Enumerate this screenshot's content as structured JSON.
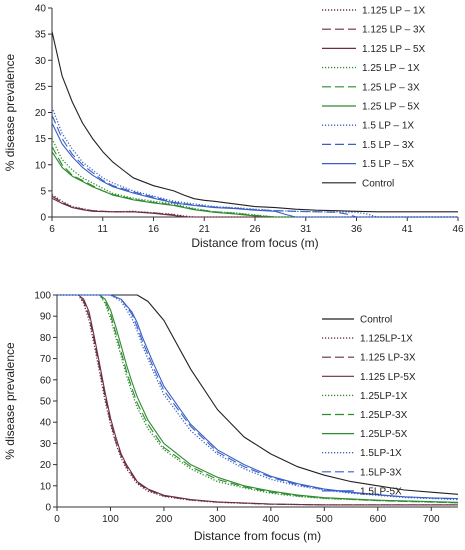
{
  "chart_data": [
    {
      "type": "line",
      "xlabel": "Distance from focus (m)",
      "ylabel": "% disease prevalence",
      "xlim": [
        6,
        46
      ],
      "ylim": [
        0,
        40
      ],
      "xticks": [
        6,
        11,
        16,
        21,
        26,
        31,
        36,
        41,
        46
      ],
      "yticks": [
        0,
        5,
        10,
        15,
        20,
        25,
        30,
        35,
        40
      ],
      "grid": false,
      "legend_position": "right",
      "series": [
        {
          "name": "1.125 LP – 1X",
          "color": "#6b2f3f",
          "dash": "dotted",
          "x": [
            6,
            7,
            8,
            9,
            10,
            12,
            14,
            16,
            18,
            19,
            20,
            46
          ],
          "y": [
            4.3,
            3.0,
            2.0,
            1.6,
            1.2,
            1.0,
            1.1,
            0.8,
            0.5,
            0.2,
            0,
            0
          ]
        },
        {
          "name": "1.125 LP – 3X",
          "color": "#6b2f3f",
          "dash": "longdash",
          "x": [
            6,
            7,
            8,
            9,
            10,
            12,
            14,
            16,
            18,
            19,
            20,
            46
          ],
          "y": [
            4.0,
            2.8,
            1.9,
            1.5,
            1.2,
            1.0,
            1.0,
            0.8,
            0.4,
            0.1,
            0,
            0
          ]
        },
        {
          "name": "1.125 LP – 5X",
          "color": "#6b2f3f",
          "dash": "solid",
          "x": [
            6,
            7,
            8,
            9,
            10,
            12,
            14,
            16,
            18,
            19,
            20,
            46
          ],
          "y": [
            3.6,
            2.6,
            1.8,
            1.4,
            1.1,
            1.0,
            1.0,
            0.7,
            0.3,
            0,
            0,
            0
          ]
        },
        {
          "name": "1.25 LP – 1X",
          "color": "#2e8b2e",
          "dash": "dotted",
          "x": [
            6,
            7,
            8,
            9,
            10,
            11,
            12,
            14,
            16,
            18,
            20,
            22,
            24,
            26,
            28,
            46
          ],
          "y": [
            15,
            11,
            9,
            7.5,
            6.5,
            5.5,
            4.5,
            3.6,
            3.0,
            2.5,
            1.6,
            1.0,
            0.8,
            0.4,
            0,
            0
          ]
        },
        {
          "name": "1.25 LP – 3X",
          "color": "#2e8b2e",
          "dash": "longdash",
          "x": [
            6,
            7,
            8,
            9,
            10,
            11,
            12,
            14,
            16,
            18,
            20,
            22,
            24,
            26,
            28,
            46
          ],
          "y": [
            13.5,
            10,
            8,
            7,
            6,
            5,
            4.3,
            3.4,
            2.8,
            2.3,
            1.5,
            1.0,
            0.7,
            0.3,
            0,
            0
          ]
        },
        {
          "name": "1.25 LP – 5X",
          "color": "#2e8b2e",
          "dash": "solid",
          "x": [
            6,
            7,
            8,
            9,
            10,
            11,
            12,
            14,
            16,
            18,
            20,
            22,
            24,
            26,
            28,
            46
          ],
          "y": [
            12.5,
            9.5,
            7.8,
            6.8,
            5.8,
            5,
            4.2,
            3.3,
            2.7,
            2.2,
            1.4,
            0.9,
            0.6,
            0.2,
            0,
            0
          ]
        },
        {
          "name": "1.5 LP – 1X",
          "color": "#3a60c8",
          "dash": "dotted",
          "x": [
            6,
            7,
            8,
            9,
            10,
            11,
            12,
            14,
            16,
            18,
            20,
            22,
            24,
            26,
            28,
            30,
            32,
            34,
            36,
            37,
            38,
            46
          ],
          "y": [
            21,
            16,
            13,
            10.5,
            9,
            7.5,
            6.5,
            5.0,
            4.0,
            3.0,
            2.5,
            2.0,
            1.8,
            1.5,
            1.2,
            1.1,
            1.0,
            1.0,
            0.9,
            0.6,
            0,
            0
          ]
        },
        {
          "name": "1.5 LP – 3X",
          "color": "#3a60c8",
          "dash": "longdash",
          "x": [
            6,
            7,
            8,
            9,
            10,
            11,
            12,
            14,
            16,
            18,
            20,
            22,
            24,
            26,
            28,
            30,
            32,
            34,
            35,
            36,
            46
          ],
          "y": [
            19.5,
            15,
            12,
            10,
            8.5,
            7,
            6,
            4.8,
            3.8,
            2.8,
            2.3,
            1.9,
            1.7,
            1.4,
            1.2,
            1.1,
            1.0,
            0.9,
            0.6,
            0,
            0
          ]
        },
        {
          "name": "1.5 LP – 5X",
          "color": "#3a60c8",
          "dash": "solid",
          "x": [
            6,
            7,
            8,
            9,
            10,
            11,
            12,
            14,
            16,
            18,
            20,
            22,
            24,
            26,
            28,
            29,
            30,
            46
          ],
          "y": [
            18,
            14,
            11.5,
            9.5,
            8,
            6.8,
            5.8,
            4.6,
            3.6,
            2.7,
            2.2,
            1.8,
            1.6,
            1.3,
            1.1,
            0.5,
            0,
            0
          ]
        },
        {
          "name": "Control",
          "color": "#222222",
          "dash": "solid",
          "x": [
            6,
            7,
            8,
            9,
            10,
            11,
            12,
            13,
            14,
            16,
            18,
            19,
            20,
            21,
            22,
            24,
            26,
            28,
            30,
            32,
            34,
            36,
            38,
            40,
            46
          ],
          "y": [
            35.5,
            27,
            22,
            18,
            15,
            12.5,
            10.5,
            9,
            7.5,
            6.0,
            5.0,
            4.2,
            3.5,
            3.2,
            3.0,
            2.5,
            2.0,
            1.8,
            1.5,
            1.3,
            1.2,
            1.1,
            1.0,
            1.0,
            1.0
          ]
        }
      ]
    },
    {
      "type": "line",
      "xlabel": "Distance from focus (m)",
      "ylabel": "% disease prevalence",
      "xlim": [
        0,
        750
      ],
      "ylim": [
        0,
        100
      ],
      "xticks": [
        0,
        100,
        200,
        300,
        400,
        500,
        600,
        700
      ],
      "yticks": [
        0,
        10,
        20,
        30,
        40,
        50,
        60,
        70,
        80,
        90,
        100
      ],
      "grid": false,
      "legend_position": "right",
      "series": [
        {
          "name": "Control",
          "color": "#222222",
          "dash": "solid",
          "x": [
            0,
            100,
            150,
            170,
            200,
            250,
            300,
            350,
            400,
            450,
            500,
            550,
            600,
            650,
            700,
            750
          ],
          "y": [
            100,
            100,
            100,
            97,
            88,
            65,
            46,
            33,
            25,
            19,
            15,
            12,
            10,
            8,
            7,
            6
          ]
        },
        {
          "name": "1.125LP-1X",
          "color": "#6b2f3f",
          "dash": "dotted",
          "x": [
            0,
            40,
            50,
            60,
            70,
            80,
            90,
            100,
            110,
            120,
            130,
            150,
            170,
            200,
            250,
            300,
            400,
            500,
            750
          ],
          "y": [
            100,
            100,
            96,
            88,
            76,
            63,
            50,
            39,
            30,
            23,
            18,
            11,
            7.5,
            5,
            3.2,
            2.2,
            1.3,
            1,
            1
          ]
        },
        {
          "name": "1.125 LP-3X",
          "color": "#6b2f3f",
          "dash": "longdash",
          "x": [
            0,
            40,
            50,
            60,
            70,
            80,
            90,
            100,
            110,
            120,
            130,
            150,
            170,
            200,
            250,
            300,
            400,
            500,
            750
          ],
          "y": [
            100,
            100,
            97,
            90,
            78,
            65,
            52,
            40,
            31,
            24,
            19,
            11.5,
            8,
            5.2,
            3.3,
            2.3,
            1.3,
            1,
            1
          ]
        },
        {
          "name": "1.125 LP-5X",
          "color": "#6b2f3f",
          "dash": "solid",
          "x": [
            0,
            40,
            50,
            60,
            70,
            80,
            90,
            100,
            110,
            120,
            130,
            150,
            170,
            200,
            250,
            300,
            400,
            500,
            750
          ],
          "y": [
            100,
            100,
            98,
            92,
            80,
            67,
            54,
            42,
            33,
            25,
            20,
            12,
            8.5,
            5.5,
            3.5,
            2.4,
            1.4,
            1,
            1
          ]
        },
        {
          "name": "1.25LP-1X",
          "color": "#2e8b2e",
          "dash": "dotted",
          "x": [
            0,
            80,
            90,
            100,
            110,
            120,
            130,
            140,
            150,
            170,
            200,
            250,
            300,
            350,
            400,
            450,
            500,
            600,
            750
          ],
          "y": [
            100,
            100,
            96,
            89,
            80,
            71,
            62,
            54,
            47,
            37,
            27,
            18,
            12,
            9,
            6.5,
            5,
            4,
            3,
            2
          ]
        },
        {
          "name": "1.25LP-3X",
          "color": "#2e8b2e",
          "dash": "longdash",
          "x": [
            0,
            80,
            90,
            100,
            110,
            120,
            130,
            140,
            150,
            170,
            200,
            250,
            300,
            350,
            400,
            450,
            500,
            600,
            750
          ],
          "y": [
            100,
            100,
            97,
            91,
            82,
            73,
            64,
            56,
            49,
            39,
            28,
            19,
            13,
            9.5,
            7,
            5.3,
            4.2,
            3,
            2
          ]
        },
        {
          "name": "1.25LP-5X",
          "color": "#2e8b2e",
          "dash": "solid",
          "x": [
            0,
            80,
            90,
            100,
            110,
            120,
            130,
            140,
            150,
            170,
            200,
            250,
            300,
            350,
            400,
            450,
            500,
            600,
            750
          ],
          "y": [
            100,
            100,
            98,
            93,
            85,
            76,
            67,
            59,
            52,
            41,
            30,
            20,
            14,
            10,
            7.5,
            5.6,
            4.4,
            3.2,
            2.2
          ]
        },
        {
          "name": "1.5LP-1X",
          "color": "#3a60c8",
          "dash": "dotted",
          "x": [
            0,
            100,
            120,
            140,
            150,
            160,
            180,
            200,
            250,
            300,
            350,
            400,
            450,
            500,
            550,
            600,
            650,
            700,
            750
          ],
          "y": [
            100,
            100,
            97,
            89,
            83,
            76,
            64,
            53,
            36,
            25,
            18,
            13,
            10,
            8,
            6.5,
            5.5,
            4.5,
            4,
            3.5
          ]
        },
        {
          "name": "1.5LP-3X",
          "color": "#3a60c8",
          "dash": "longdash",
          "x": [
            0,
            100,
            120,
            140,
            150,
            160,
            180,
            200,
            250,
            300,
            350,
            400,
            450,
            500,
            550,
            600,
            650,
            700,
            750
          ],
          "y": [
            100,
            100,
            98,
            91,
            85,
            78,
            66,
            55,
            38,
            26,
            19,
            14,
            10.5,
            8.3,
            6.8,
            5.7,
            4.7,
            4.2,
            3.8
          ]
        },
        {
          "name": "1.5LP-5X",
          "color": "#3a60c8",
          "dash": "solid",
          "x": [
            0,
            100,
            120,
            140,
            150,
            160,
            180,
            200,
            250,
            300,
            350,
            400,
            450,
            500,
            550,
            600,
            650,
            700,
            750
          ],
          "y": [
            100,
            100,
            98,
            92,
            87,
            80,
            68,
            57,
            39,
            27,
            20,
            14.5,
            11,
            8.5,
            7,
            5.8,
            4.8,
            4.3,
            4
          ]
        }
      ]
    }
  ]
}
